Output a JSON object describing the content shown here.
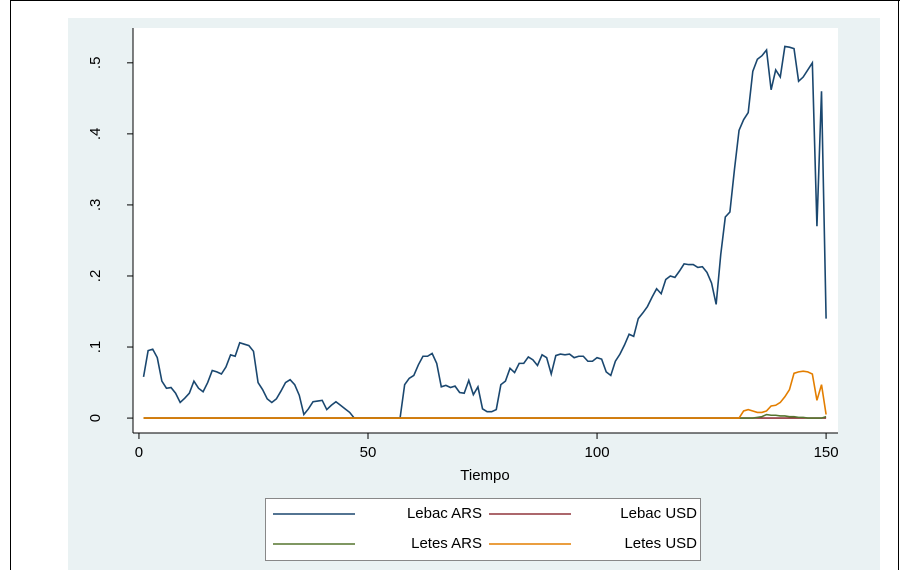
{
  "chart_data": {
    "type": "line",
    "xlabel": "Tiempo",
    "xlim": [
      -1.3,
      152.6
    ],
    "ylim": [
      -0.021,
      0.549
    ],
    "xticks": [
      0,
      50,
      100,
      150
    ],
    "yticks": [
      0,
      {
        "value": 0.1,
        "label": ".1"
      },
      {
        "value": 0.2,
        "label": ".2"
      },
      {
        "value": 0.3,
        "label": ".3"
      },
      {
        "value": 0.4,
        "label": ".4"
      },
      {
        "value": 0.5,
        "label": ".5"
      }
    ],
    "grid": false,
    "x": [
      1,
      2,
      3,
      4,
      5,
      6,
      7,
      8,
      9,
      10,
      11,
      12,
      13,
      14,
      15,
      16,
      17,
      18,
      19,
      20,
      21,
      22,
      23,
      24,
      25,
      26,
      27,
      28,
      29,
      30,
      31,
      32,
      33,
      34,
      35,
      36,
      37,
      38,
      39,
      40,
      41,
      42,
      43,
      44,
      45,
      46,
      47,
      48,
      49,
      50,
      51,
      52,
      53,
      54,
      55,
      56,
      57,
      58,
      59,
      60,
      61,
      62,
      63,
      64,
      65,
      66,
      67,
      68,
      69,
      70,
      71,
      72,
      73,
      74,
      75,
      76,
      77,
      78,
      79,
      80,
      81,
      82,
      83,
      84,
      85,
      86,
      87,
      88,
      89,
      90,
      91,
      92,
      93,
      94,
      95,
      96,
      97,
      98,
      99,
      100,
      101,
      102,
      103,
      104,
      105,
      106,
      107,
      108,
      109,
      110,
      111,
      112,
      113,
      114,
      115,
      116,
      117,
      118,
      119,
      120,
      121,
      122,
      123,
      124,
      125,
      126,
      127,
      128,
      129,
      130,
      131,
      132,
      133,
      134,
      135,
      136,
      137,
      138,
      139,
      140,
      141,
      142,
      143,
      144,
      145,
      146,
      147,
      148,
      149,
      150
    ],
    "series": [
      {
        "name": "Lebac ARS",
        "color": "#1a476f",
        "values": [
          0.058,
          0.095,
          0.097,
          0.085,
          0.052,
          0.042,
          0.043,
          0.035,
          0.022,
          0.028,
          0.035,
          0.052,
          0.042,
          0.037,
          0.05,
          0.067,
          0.065,
          0.062,
          0.072,
          0.089,
          0.087,
          0.106,
          0.104,
          0.102,
          0.094,
          0.05,
          0.04,
          0.027,
          0.022,
          0.027,
          0.038,
          0.05,
          0.054,
          0.047,
          0.032,
          0.005,
          0.013,
          0.023,
          0.024,
          0.025,
          0.012,
          0.018,
          0.023,
          0.018,
          0.013,
          0.008,
          0,
          0,
          0,
          0,
          0,
          0,
          0,
          0,
          0,
          0,
          0,
          0.047,
          0.056,
          0.06,
          0.075,
          0.087,
          0.087,
          0.091,
          0.077,
          0.044,
          0.046,
          0.043,
          0.045,
          0.036,
          0.035,
          0.053,
          0.033,
          0.044,
          0.013,
          0.009,
          0.009,
          0.012,
          0.047,
          0.052,
          0.07,
          0.064,
          0.077,
          0.077,
          0.086,
          0.082,
          0.074,
          0.089,
          0.085,
          0.062,
          0.088,
          0.09,
          0.089,
          0.09,
          0.085,
          0.087,
          0.087,
          0.08,
          0.08,
          0.085,
          0.083,
          0.065,
          0.06,
          0.08,
          0.09,
          0.103,
          0.118,
          0.115,
          0.14,
          0.148,
          0.157,
          0.17,
          0.182,
          0.175,
          0.195,
          0.2,
          0.198,
          0.207,
          0.217,
          0.216,
          0.216,
          0.212,
          0.213,
          0.205,
          0.19,
          0.16,
          0.23,
          0.283,
          0.29,
          0.35,
          0.405,
          0.42,
          0.43,
          0.488,
          0.505,
          0.51,
          0.518,
          0.462,
          0.49,
          0.48,
          0.523,
          0.522,
          0.52,
          0.474,
          0.48,
          0.49,
          0.5,
          0.27,
          0.46,
          0.14
        ]
      },
      {
        "name": "Lebac USD",
        "color": "#90353b",
        "values": [
          0,
          0,
          0,
          0,
          0,
          0,
          0,
          0,
          0,
          0,
          0,
          0,
          0,
          0,
          0,
          0,
          0,
          0,
          0,
          0,
          0,
          0,
          0,
          0,
          0,
          0,
          0,
          0,
          0,
          0,
          0,
          0,
          0,
          0,
          0,
          0,
          0,
          0,
          0,
          0,
          0,
          0,
          0,
          0,
          0,
          0,
          0,
          0,
          0,
          0,
          0,
          0,
          0,
          0,
          0,
          0,
          0,
          0,
          0,
          0,
          0,
          0,
          0,
          0,
          0,
          0,
          0,
          0,
          0,
          0,
          0,
          0,
          0,
          0,
          0,
          0,
          0,
          0,
          0,
          0,
          0,
          0,
          0,
          0,
          0,
          0,
          0,
          0,
          0,
          0,
          0,
          0,
          0,
          0,
          0,
          0,
          0,
          0,
          0,
          0,
          0,
          0,
          0,
          0,
          0,
          0,
          0,
          0,
          0,
          0,
          0,
          0,
          0,
          0,
          0,
          0,
          0,
          0,
          0,
          0,
          0,
          0,
          0,
          0,
          0,
          0,
          0,
          0,
          0,
          0,
          0,
          0,
          0,
          0,
          0,
          0,
          0,
          0,
          0,
          0,
          0,
          0,
          0,
          0,
          0,
          0,
          0,
          0,
          0,
          0
        ]
      },
      {
        "name": "Letes ARS",
        "color": "#55752f",
        "values": [
          0,
          0,
          0,
          0,
          0,
          0,
          0,
          0,
          0,
          0,
          0,
          0,
          0,
          0,
          0,
          0,
          0,
          0,
          0,
          0,
          0,
          0,
          0,
          0,
          0,
          0,
          0,
          0,
          0,
          0,
          0,
          0,
          0,
          0,
          0,
          0,
          0,
          0,
          0,
          0,
          0,
          0,
          0,
          0,
          0,
          0,
          0,
          0,
          0,
          0,
          0,
          0,
          0,
          0,
          0,
          0,
          0,
          0,
          0,
          0,
          0,
          0,
          0,
          0,
          0,
          0,
          0,
          0,
          0,
          0,
          0,
          0,
          0,
          0,
          0,
          0,
          0,
          0,
          0,
          0,
          0,
          0,
          0,
          0,
          0,
          0,
          0,
          0,
          0,
          0,
          0,
          0,
          0,
          0,
          0,
          0,
          0,
          0,
          0,
          0,
          0,
          0,
          0,
          0,
          0,
          0,
          0,
          0,
          0,
          0,
          0,
          0,
          0,
          0,
          0,
          0,
          0,
          0,
          0,
          0,
          0,
          0,
          0,
          0,
          0,
          0,
          0,
          0,
          0,
          0,
          0,
          0,
          0,
          0,
          0.001,
          0.002,
          0.005,
          0.004,
          0.004,
          0.003,
          0.003,
          0.002,
          0.002,
          0.001,
          0.001,
          0,
          0,
          0,
          0,
          0.002
        ]
      },
      {
        "name": "Letes USD",
        "color": "#e37e00",
        "values": [
          0,
          0,
          0,
          0,
          0,
          0,
          0,
          0,
          0,
          0,
          0,
          0,
          0,
          0,
          0,
          0,
          0,
          0,
          0,
          0,
          0,
          0,
          0,
          0,
          0,
          0,
          0,
          0,
          0,
          0,
          0,
          0,
          0,
          0,
          0,
          0,
          0,
          0,
          0,
          0,
          0,
          0,
          0,
          0,
          0,
          0,
          0,
          0,
          0,
          0,
          0,
          0,
          0,
          0,
          0,
          0,
          0,
          0,
          0,
          0,
          0,
          0,
          0,
          0,
          0,
          0,
          0,
          0,
          0,
          0,
          0,
          0,
          0,
          0,
          0,
          0,
          0,
          0,
          0,
          0,
          0,
          0,
          0,
          0,
          0,
          0,
          0,
          0,
          0,
          0,
          0,
          0,
          0,
          0,
          0,
          0,
          0,
          0,
          0,
          0,
          0,
          0,
          0,
          0,
          0,
          0,
          0,
          0,
          0,
          0,
          0,
          0,
          0,
          0,
          0,
          0,
          0,
          0,
          0,
          0,
          0,
          0,
          0,
          0,
          0,
          0,
          0,
          0,
          0,
          0,
          0,
          0.01,
          0.012,
          0.01,
          0.008,
          0.008,
          0.01,
          0.017,
          0.018,
          0.022,
          0.03,
          0.04,
          0.063,
          0.065,
          0.066,
          0.065,
          0.062,
          0.025,
          0.047,
          0.005
        ]
      }
    ]
  }
}
